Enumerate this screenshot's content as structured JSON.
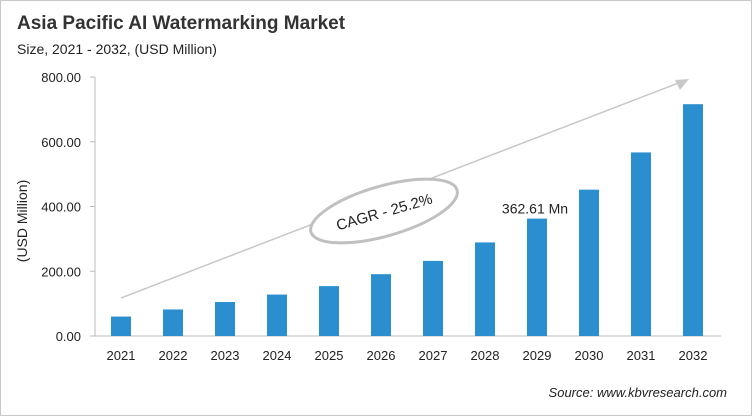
{
  "chart_data": {
    "type": "bar",
    "title": "Asia Pacific AI Watermarking Market",
    "subtitle": "Size, 2021 - 2032, (USD Million)",
    "xlabel": "",
    "ylabel": "(USD Million)",
    "ylim": [
      0,
      800
    ],
    "yticks": [
      "0.00",
      "200.00",
      "400.00",
      "600.00",
      "800.00"
    ],
    "grid": false,
    "categories": [
      "2021",
      "2022",
      "2023",
      "2024",
      "2025",
      "2026",
      "2027",
      "2028",
      "2029",
      "2030",
      "2031",
      "2032"
    ],
    "values": [
      60,
      82,
      105,
      128,
      154,
      191,
      232,
      289,
      362.61,
      452,
      567,
      716
    ],
    "bar_color": "#2b8fcf",
    "annotations": {
      "cagr": "CAGR - 25.2%",
      "value_label": "362.61 Mn"
    },
    "source": "Source: www.kbvresearch.com"
  }
}
